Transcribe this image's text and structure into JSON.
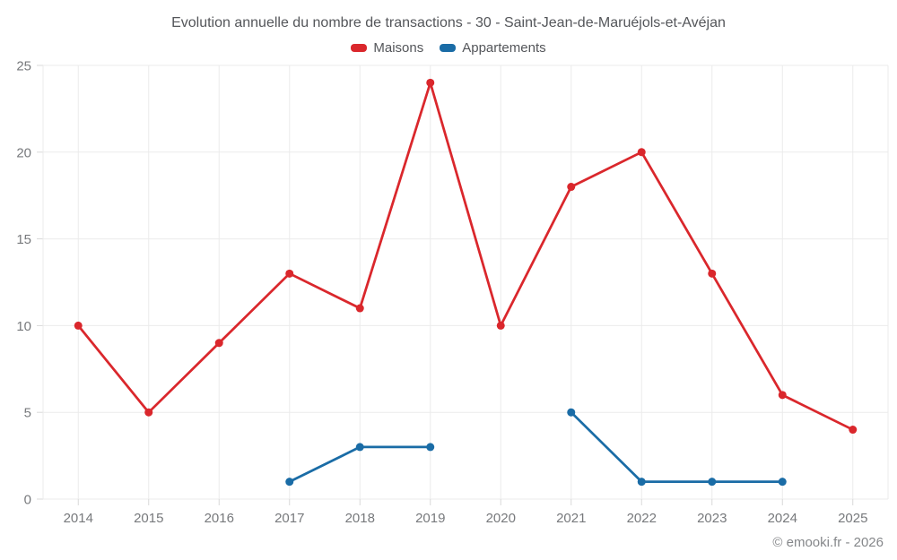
{
  "chart_data": {
    "type": "line",
    "title": "Evolution annuelle du nombre de transactions - 30 - Saint-Jean-de-Maruéjols-et-Avéjan",
    "categories": [
      "2014",
      "2015",
      "2016",
      "2017",
      "2018",
      "2019",
      "2020",
      "2021",
      "2022",
      "2023",
      "2024",
      "2025"
    ],
    "series": [
      {
        "name": "Maisons",
        "key": "maisons",
        "color": "#da272c",
        "values": [
          10,
          5,
          9,
          13,
          11,
          24,
          10,
          18,
          20,
          13,
          6,
          4
        ]
      },
      {
        "name": "Appartements",
        "key": "appartements",
        "color": "#1a6ca6",
        "values": [
          null,
          null,
          null,
          1,
          3,
          3,
          null,
          5,
          1,
          1,
          1,
          null
        ]
      }
    ],
    "xlabel": "",
    "ylabel": "",
    "ylim": [
      0,
      25
    ],
    "y_ticks": [
      0,
      5,
      10,
      15,
      20,
      25
    ],
    "grid": true,
    "legend_position": "top",
    "marker": "circle"
  },
  "colors": {
    "grid": "#ebebeb",
    "tick": "#d9d9d9",
    "axis_label": "#77797c",
    "title_text": "#54565a",
    "footer_text": "#85878a"
  },
  "footer": {
    "credit": "© emooki.fr - 2026"
  }
}
